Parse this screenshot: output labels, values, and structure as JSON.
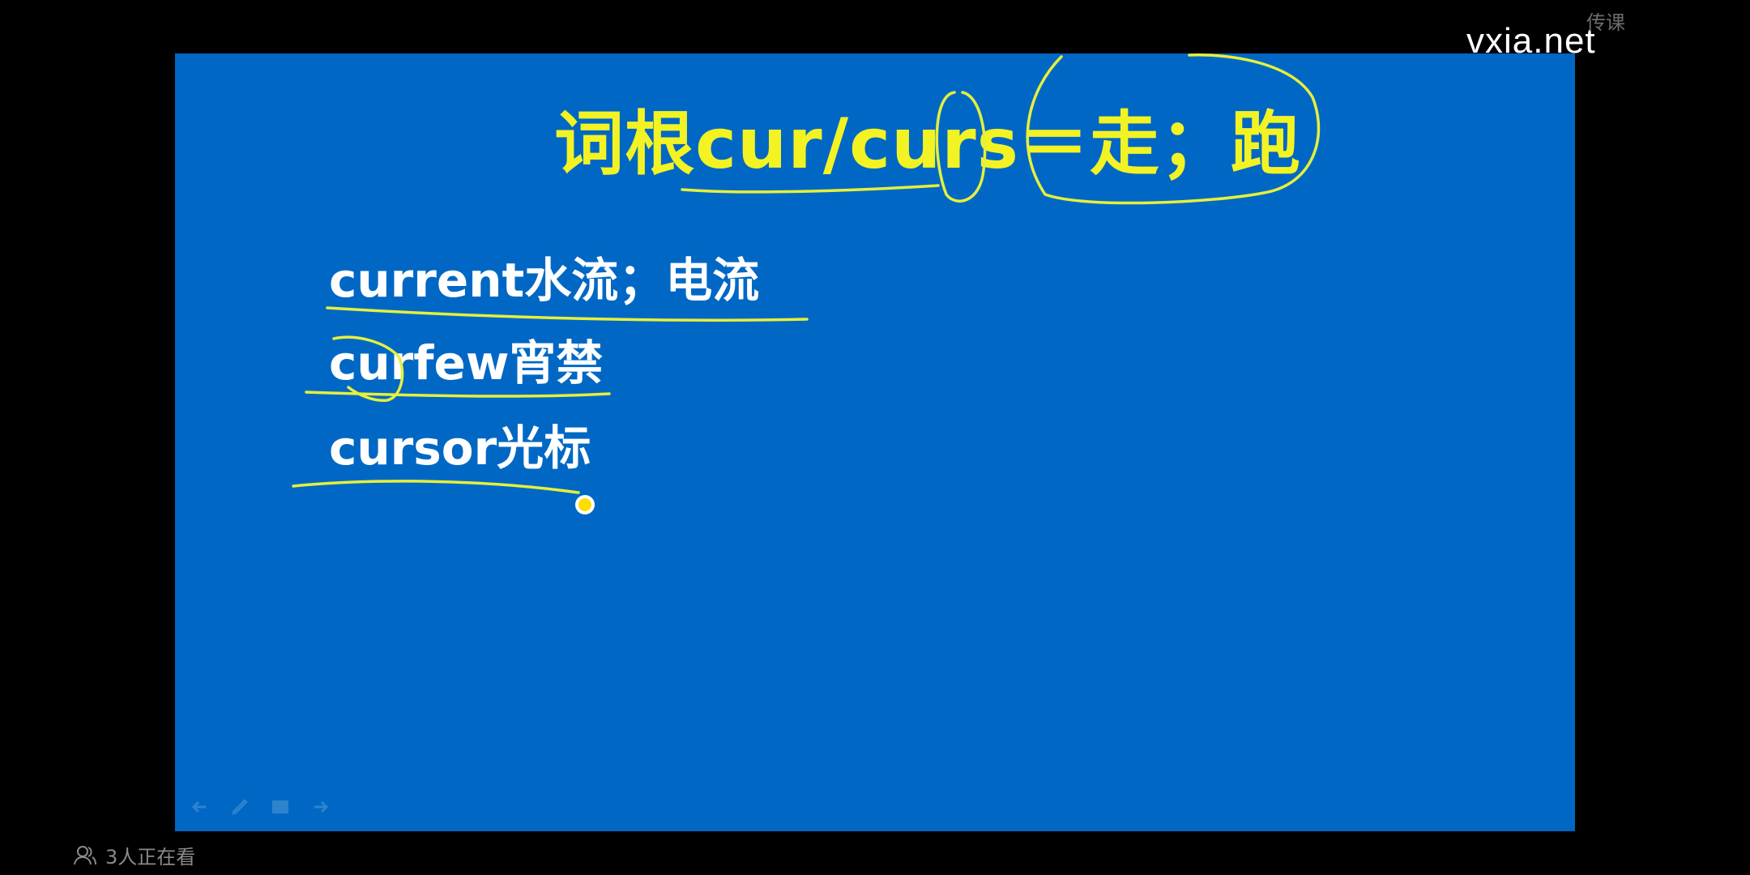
{
  "slide": {
    "title": "词根cur/curs＝走；跑",
    "items": [
      "current水流；电流",
      "curfew宵禁",
      "cursor光标"
    ]
  },
  "watermark": {
    "main": "vxia.net",
    "sub": "传课"
  },
  "viewers": {
    "label": "3人正在看",
    "icon": "people-icon"
  },
  "toolbar": {
    "icons": [
      "back-arrow-icon",
      "pen-icon",
      "menu-icon",
      "forward-arrow-icon"
    ]
  },
  "colors": {
    "background": "#000000",
    "slide": "#0068c4",
    "title": "#f3f324",
    "text": "#ffffff",
    "ink": "#e6f03c"
  }
}
